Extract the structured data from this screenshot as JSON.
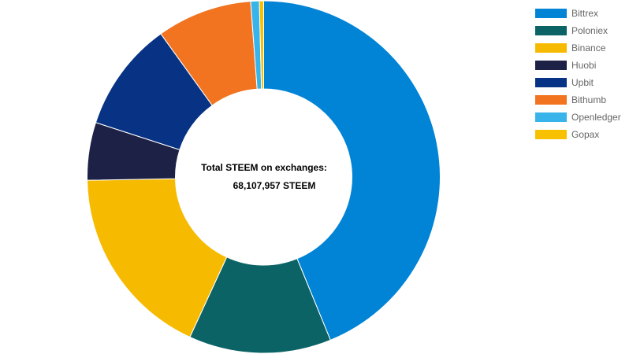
{
  "chart_data": {
    "type": "pie",
    "variant": "doughnut",
    "title": "",
    "center_text": {
      "label": "Total STEEM on exchanges:",
      "value": "68,107,957 STEEM"
    },
    "categories": [
      "Bittrex",
      "Poloniex",
      "Binance",
      "Huobi",
      "Upbit",
      "Bithumb",
      "Openledger",
      "Gopax"
    ],
    "values": [
      44.7,
      13.3,
      18.2,
      5.4,
      10.3,
      8.9,
      0.8,
      0.4
    ],
    "value_unit": "percent of total (estimated from slice angles)",
    "colors": [
      "#0284d6",
      "#0b6366",
      "#f6bb00",
      "#1d2145",
      "#083385",
      "#f27420",
      "#38b4ea",
      "#f8c100"
    ],
    "legend": {
      "position": "top-right"
    }
  }
}
